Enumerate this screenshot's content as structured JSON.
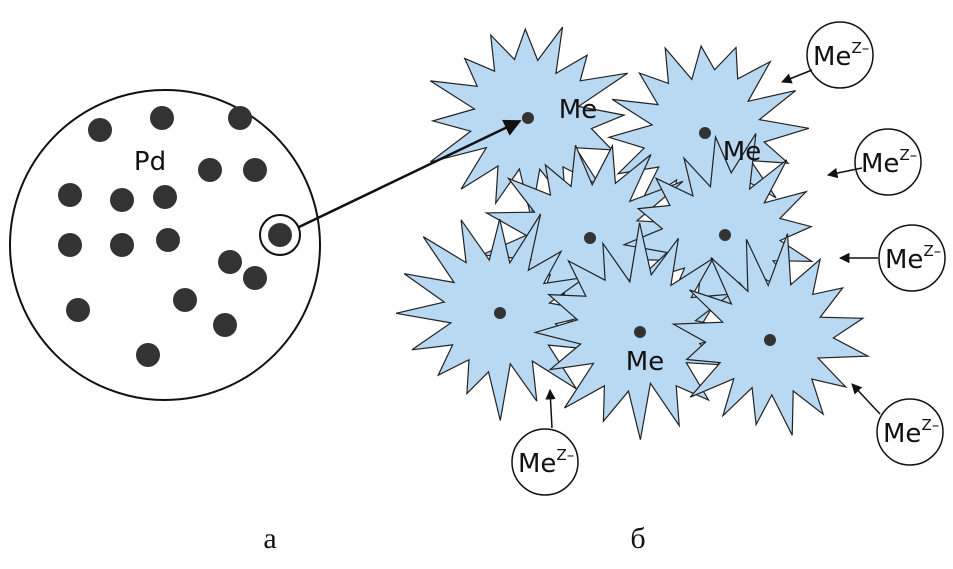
{
  "panel_a": {
    "label": "а",
    "particle_label": "Pd"
  },
  "panel_b": {
    "label": "б",
    "atoms": [
      "Me",
      "Me",
      "Me"
    ],
    "ions": [
      {
        "base": "Me",
        "charge": "Z–"
      },
      {
        "base": "Me",
        "charge": "Z–"
      },
      {
        "base": "Me",
        "charge": "Z–"
      },
      {
        "base": "Me",
        "charge": "Z–"
      },
      {
        "base": "Me",
        "charge": "Z–"
      }
    ]
  }
}
